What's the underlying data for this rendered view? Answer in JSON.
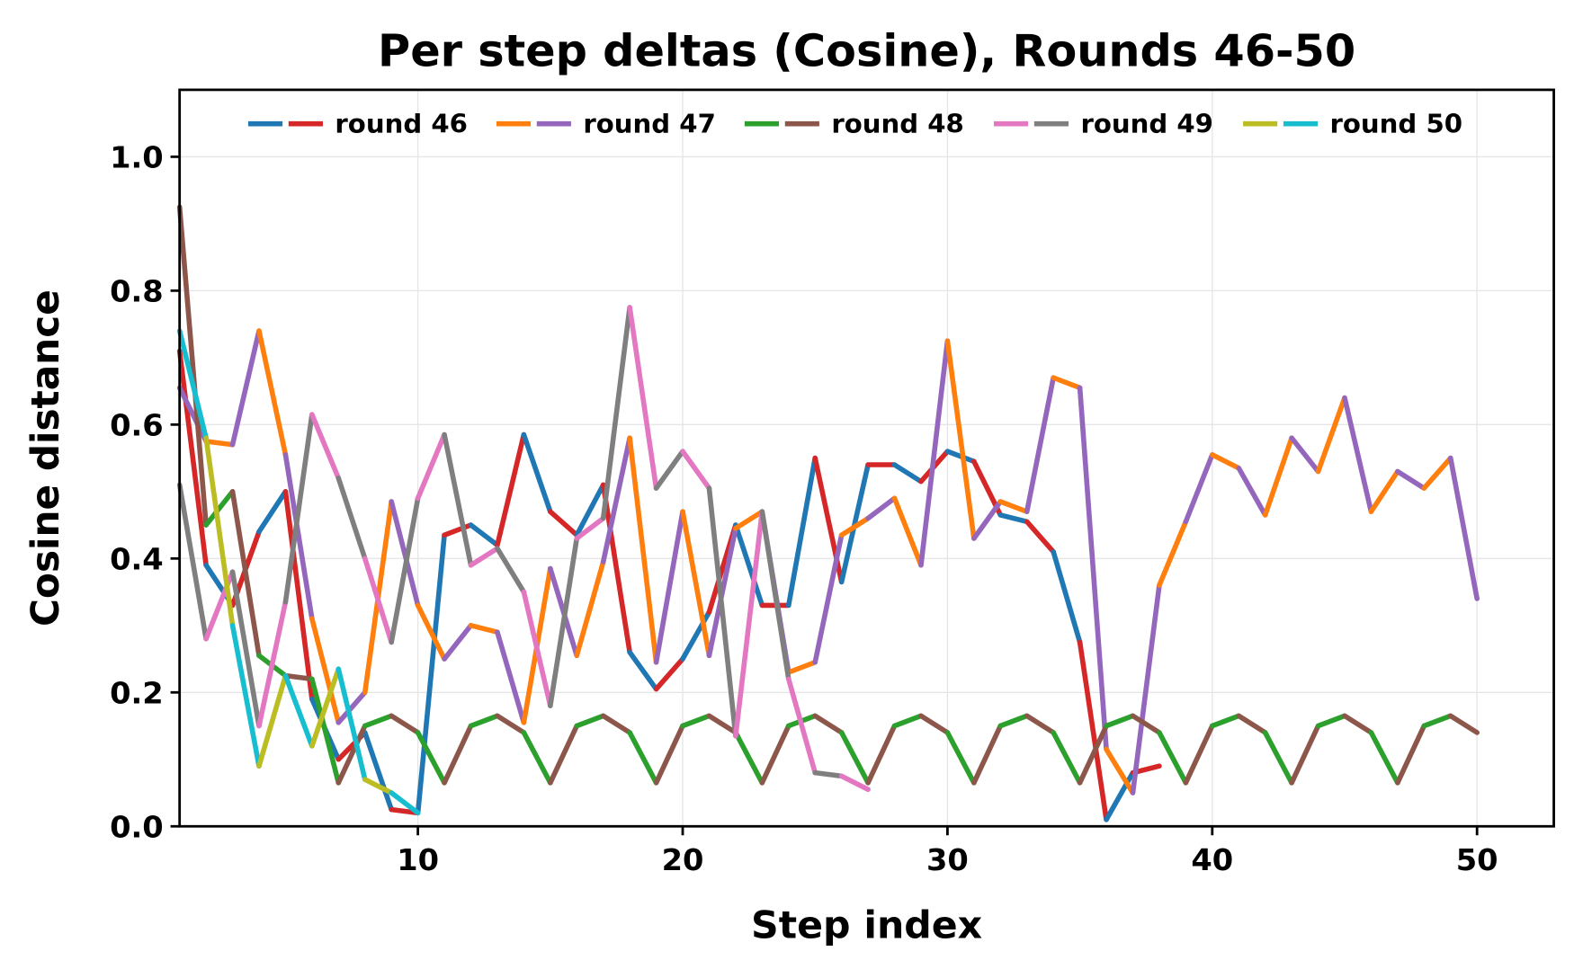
{
  "chart_data": {
    "type": "line",
    "title": "Per step deltas (Cosine), Rounds 46-50",
    "xlabel": "Step index",
    "ylabel": "Cosine distance",
    "xlim": [
      1,
      52.9
    ],
    "ylim": [
      0,
      1.1
    ],
    "xticks": [
      10,
      20,
      30,
      40,
      50
    ],
    "yticks": [
      0.0,
      0.2,
      0.4,
      0.6,
      0.8,
      1.0
    ],
    "grid": true,
    "legend_placement": "top-center",
    "segment_coloring": "each series alternates its two colors segment by segment",
    "series": [
      {
        "name": "round 46",
        "colors": [
          "#1f77b4",
          "#d62728"
        ],
        "values": [
          0.71,
          0.39,
          0.33,
          0.44,
          0.5,
          0.19,
          0.1,
          0.14,
          0.025,
          0.02,
          0.435,
          0.45,
          0.42,
          0.585,
          0.47,
          0.435,
          0.51,
          0.26,
          0.205,
          0.25,
          0.32,
          0.45,
          0.33,
          0.33,
          0.55,
          0.365,
          0.54,
          0.54,
          0.515,
          0.56,
          0.545,
          0.465,
          0.455,
          0.41,
          0.275,
          0.01,
          0.08,
          0.09
        ]
      },
      {
        "name": "round 47",
        "colors": [
          "#ff7f0e",
          "#9467bd"
        ],
        "values": [
          0.655,
          0.575,
          0.57,
          0.74,
          0.555,
          0.31,
          0.155,
          0.2,
          0.485,
          0.33,
          0.25,
          0.3,
          0.29,
          0.155,
          0.385,
          0.255,
          0.395,
          0.58,
          0.245,
          0.47,
          0.255,
          0.445,
          0.47,
          0.23,
          0.245,
          0.435,
          0.46,
          0.49,
          0.39,
          0.725,
          0.43,
          0.485,
          0.47,
          0.67,
          0.655,
          0.115,
          0.05,
          0.36,
          0.455,
          0.555,
          0.535,
          0.465,
          0.58,
          0.53,
          0.64,
          0.47,
          0.53,
          0.505,
          0.55,
          0.34
        ]
      },
      {
        "name": "round 48",
        "colors": [
          "#2ca02c",
          "#8c564b"
        ],
        "values": [
          0.925,
          0.45,
          0.5,
          0.255,
          0.225,
          0.22,
          0.065,
          0.15,
          0.165,
          0.14,
          0.065,
          0.15,
          0.165,
          0.14,
          0.065,
          0.15,
          0.165,
          0.14,
          0.065,
          0.15,
          0.165,
          0.14,
          0.065,
          0.15,
          0.165,
          0.14,
          0.065,
          0.15,
          0.165,
          0.14,
          0.065,
          0.15,
          0.165,
          0.14,
          0.065,
          0.15,
          0.165,
          0.14,
          0.065,
          0.15,
          0.165,
          0.14,
          0.065,
          0.15,
          0.165,
          0.14,
          0.065,
          0.15,
          0.165,
          0.14
        ]
      },
      {
        "name": "round 49",
        "colors": [
          "#e377c2",
          "#7f7f7f"
        ],
        "values": [
          0.51,
          0.28,
          0.38,
          0.15,
          0.335,
          0.615,
          0.52,
          0.4,
          0.275,
          0.49,
          0.585,
          0.39,
          0.415,
          0.35,
          0.18,
          0.43,
          0.46,
          0.775,
          0.505,
          0.56,
          0.505,
          0.135,
          0.47,
          0.22,
          0.08,
          0.075,
          0.055
        ]
      },
      {
        "name": "round 50",
        "colors": [
          "#bcbd22",
          "#17becf"
        ],
        "values": [
          0.74,
          0.58,
          0.3,
          0.09,
          0.225,
          0.12,
          0.235,
          0.07,
          0.05,
          0.02
        ]
      }
    ]
  }
}
